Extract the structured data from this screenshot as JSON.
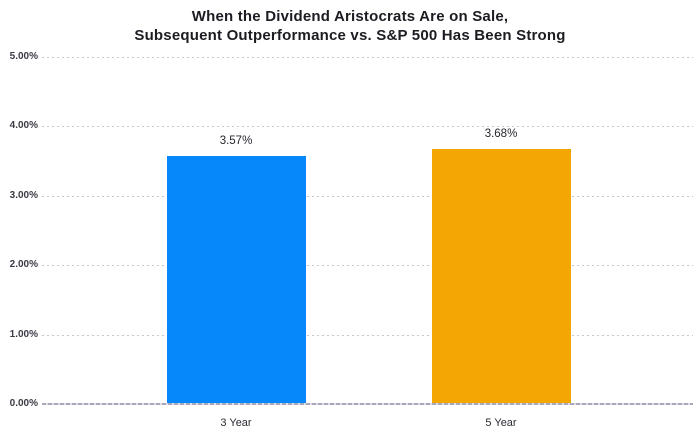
{
  "title": {
    "line1": "When the Dividend Aristocrats Are on Sale,",
    "line2": "Subsequent Outperformance vs. S&P 500 Has Been Strong"
  },
  "colors": {
    "bar_3_year": "#0788FA",
    "bar_5_year": "#F4A603",
    "gridline": "#C6C5D2",
    "baseline": "#A9A7BC",
    "title_text": "#1C1C22",
    "axis_text": "#3B3B46"
  },
  "chart_data": {
    "type": "bar",
    "title": "When the Dividend Aristocrats Are on Sale, Subsequent Outperformance vs. S&P 500 Has Been Strong",
    "categories": [
      "3 Year",
      "5 Year"
    ],
    "values": [
      3.57,
      3.68
    ],
    "value_labels": [
      "3.57%",
      "3.68%"
    ],
    "bar_colors": [
      "#0788FA",
      "#F4A603"
    ],
    "xlabel": "",
    "ylabel": "",
    "ylim": [
      0,
      5
    ],
    "yticks": [
      {
        "value": 5,
        "label": "5.00%"
      },
      {
        "value": 4,
        "label": "4.00%"
      },
      {
        "value": 3,
        "label": "3.00%"
      },
      {
        "value": 2,
        "label": "2.00%"
      },
      {
        "value": 1,
        "label": "1.00%"
      },
      {
        "value": 0,
        "label": "0.00%"
      }
    ],
    "grid": "horizontal-dashed",
    "legend": "none"
  }
}
